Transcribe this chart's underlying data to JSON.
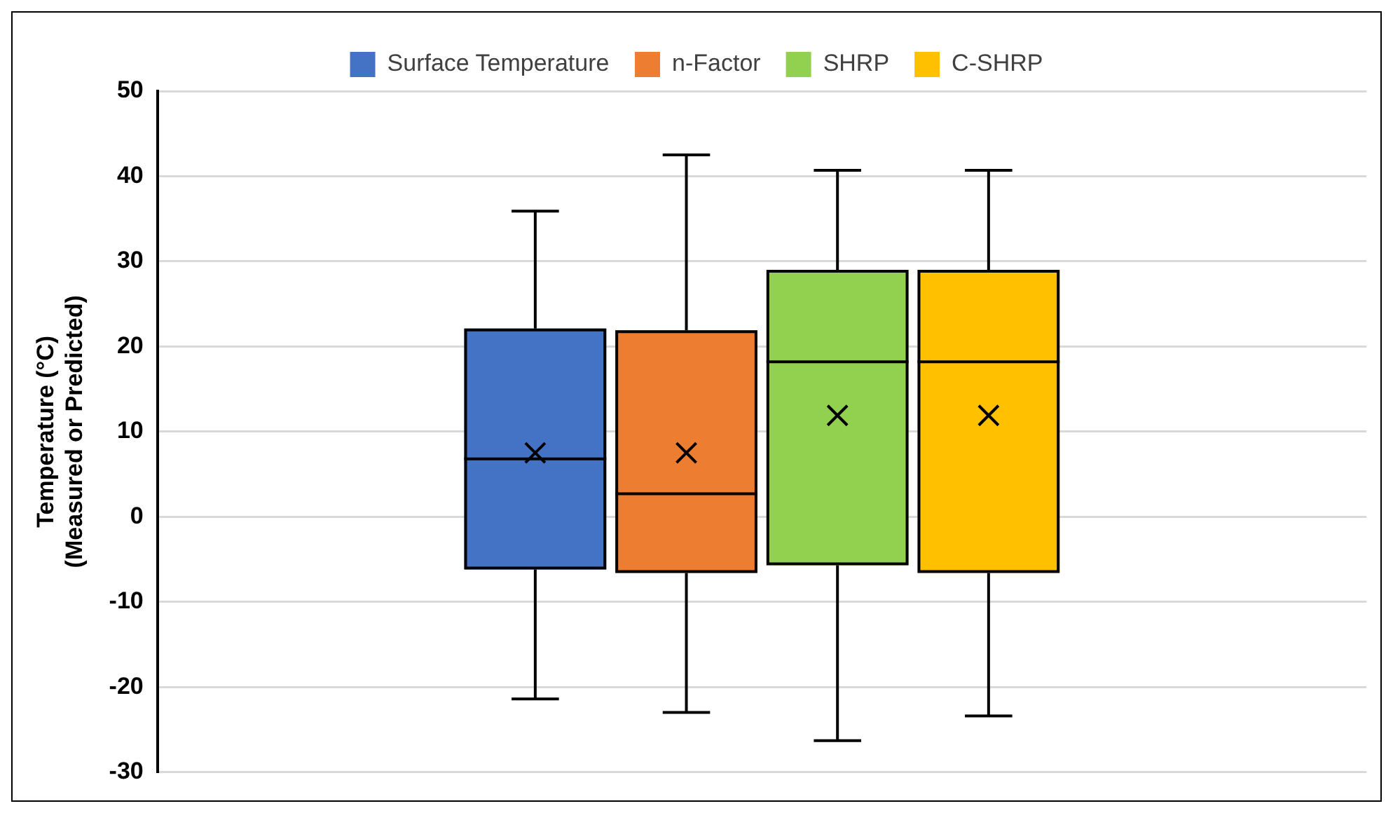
{
  "chart_data": {
    "type": "box",
    "ylabel": "Temperature (°C)\n(Measured or Predicted)",
    "categories": [
      null
    ],
    "series": [
      {
        "name": "Surface Temperature",
        "color": "#4472c4",
        "boxes": [
          {
            "low": -21.4,
            "q1": -6.2,
            "median": 6.8,
            "q3": 22.1,
            "high": 35.9,
            "mean": 7.5
          }
        ]
      },
      {
        "name": "n-Factor",
        "color": "#ed7d31",
        "boxes": [
          {
            "low": -23,
            "q1": -6.6,
            "median": 2.7,
            "q3": 21.9,
            "high": 42.5,
            "mean": 7.5
          }
        ]
      },
      {
        "name": "SHRP",
        "color": "#92d050",
        "boxes": [
          {
            "low": -26.3,
            "q1": -5.7,
            "median": 18.2,
            "q3": 29,
            "high": 40.7,
            "mean": 11.9
          }
        ]
      },
      {
        "name": "C-SHRP",
        "color": "#ffc000",
        "boxes": [
          {
            "low": -23.4,
            "q1": -6.6,
            "median": 18.2,
            "q3": 29,
            "high": 40.7,
            "mean": 11.9
          }
        ]
      }
    ],
    "ylim": [
      -30,
      50
    ],
    "yticks": [
      -30,
      -20,
      -10,
      0,
      10,
      20,
      30,
      40,
      50
    ],
    "grid": "y",
    "legend": "top"
  }
}
